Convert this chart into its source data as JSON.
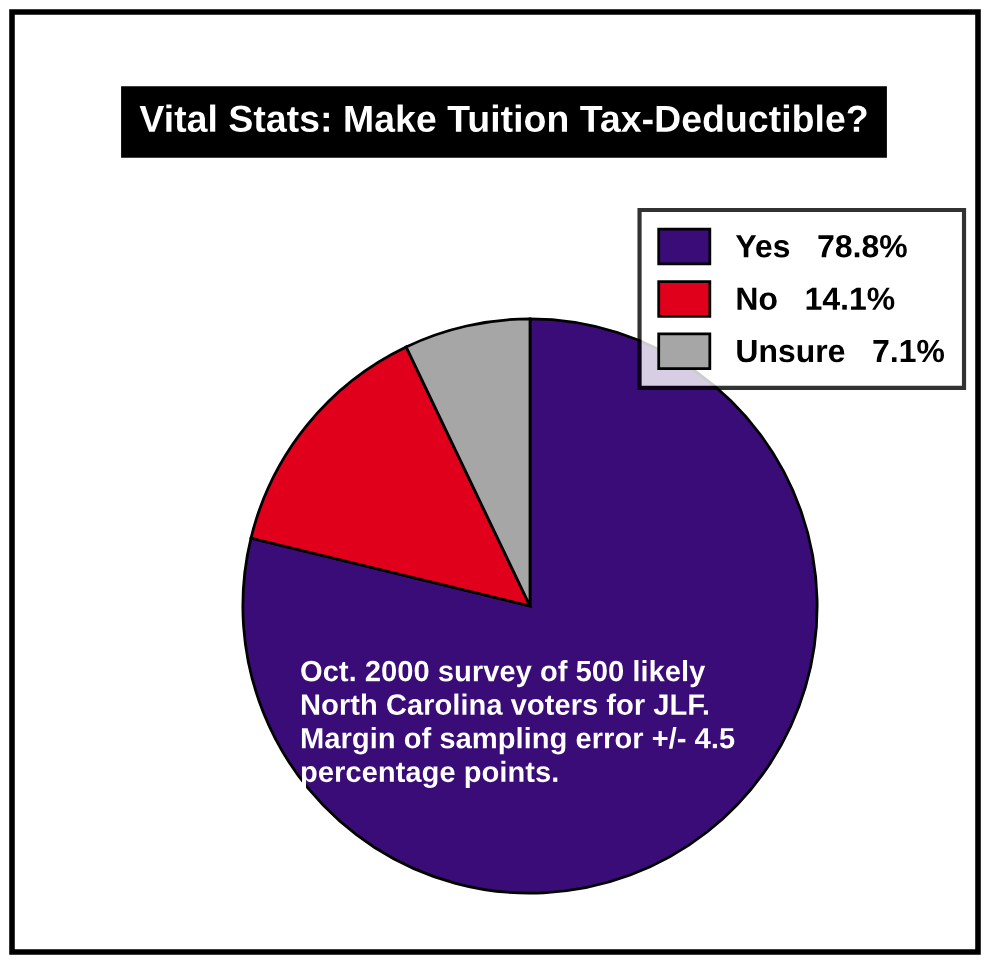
{
  "chart_data": {
    "type": "pie",
    "title": "Vital Stats: Make Tuition Tax-Deductible?",
    "categories": [
      "Yes",
      "No",
      "Unsure"
    ],
    "values": [
      78.8,
      14.1,
      7.1
    ],
    "value_labels": [
      "78.8%",
      "14.1%",
      "7.1%"
    ],
    "colors": [
      "#3a0c78",
      "#e0001b",
      "#a6a6a6"
    ],
    "legend": "top right",
    "annotations": [
      "Oct. 2000 survey of 500 likely\nNorth Carolina voters for JLF.\nMargin of sampling error +/- 4.5\npercentage points."
    ]
  }
}
